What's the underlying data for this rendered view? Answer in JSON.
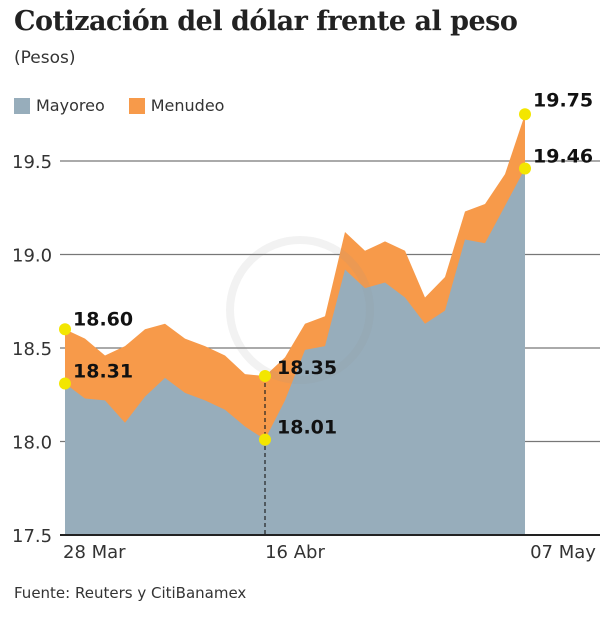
{
  "chart_data": {
    "type": "area",
    "title": "Cotización del dólar frente al peso",
    "subtitle": "(Pesos)",
    "categories": [
      "28 Mar",
      "",
      "",
      "",
      "",
      "",
      "",
      "",
      "",
      "",
      "16 Abr",
      "",
      "",
      "",
      "",
      "",
      "",
      "",
      "",
      "",
      "",
      "",
      "",
      "07 May"
    ],
    "series": [
      {
        "name": "Mayoreo",
        "color": "#97adbb",
        "values": [
          18.31,
          18.23,
          18.22,
          18.1,
          18.24,
          18.34,
          18.26,
          18.22,
          18.17,
          18.08,
          18.01,
          18.22,
          18.49,
          18.51,
          18.92,
          18.82,
          18.85,
          18.77,
          18.63,
          18.7,
          19.08,
          19.06,
          19.26,
          19.46
        ]
      },
      {
        "name": "Menudeo",
        "color": "#f79a4a",
        "values": [
          18.6,
          18.55,
          18.46,
          18.51,
          18.6,
          18.63,
          18.55,
          18.51,
          18.46,
          18.36,
          18.35,
          18.45,
          18.63,
          18.67,
          19.12,
          19.02,
          19.07,
          19.02,
          18.77,
          18.88,
          19.23,
          19.27,
          19.43,
          19.75
        ]
      }
    ],
    "ylim": [
      17.5,
      19.75
    ],
    "yticks": [
      "17.5",
      "18.0",
      "18.5",
      "19.0",
      "19.5"
    ],
    "grid": true,
    "legend": "top-left",
    "annotations": [
      {
        "index": 0,
        "series": "Menudeo",
        "label": "18.60"
      },
      {
        "index": 0,
        "series": "Mayoreo",
        "label": "18.31"
      },
      {
        "index": 10,
        "series": "Menudeo",
        "label": "18.35"
      },
      {
        "index": 10,
        "series": "Mayoreo",
        "label": "18.01"
      },
      {
        "index": 23,
        "series": "Menudeo",
        "label": "19.75"
      },
      {
        "index": 23,
        "series": "Mayoreo",
        "label": "19.46"
      }
    ],
    "marker_color": "#f3e600",
    "source": "Fuente: Reuters y CitiBanamex"
  }
}
